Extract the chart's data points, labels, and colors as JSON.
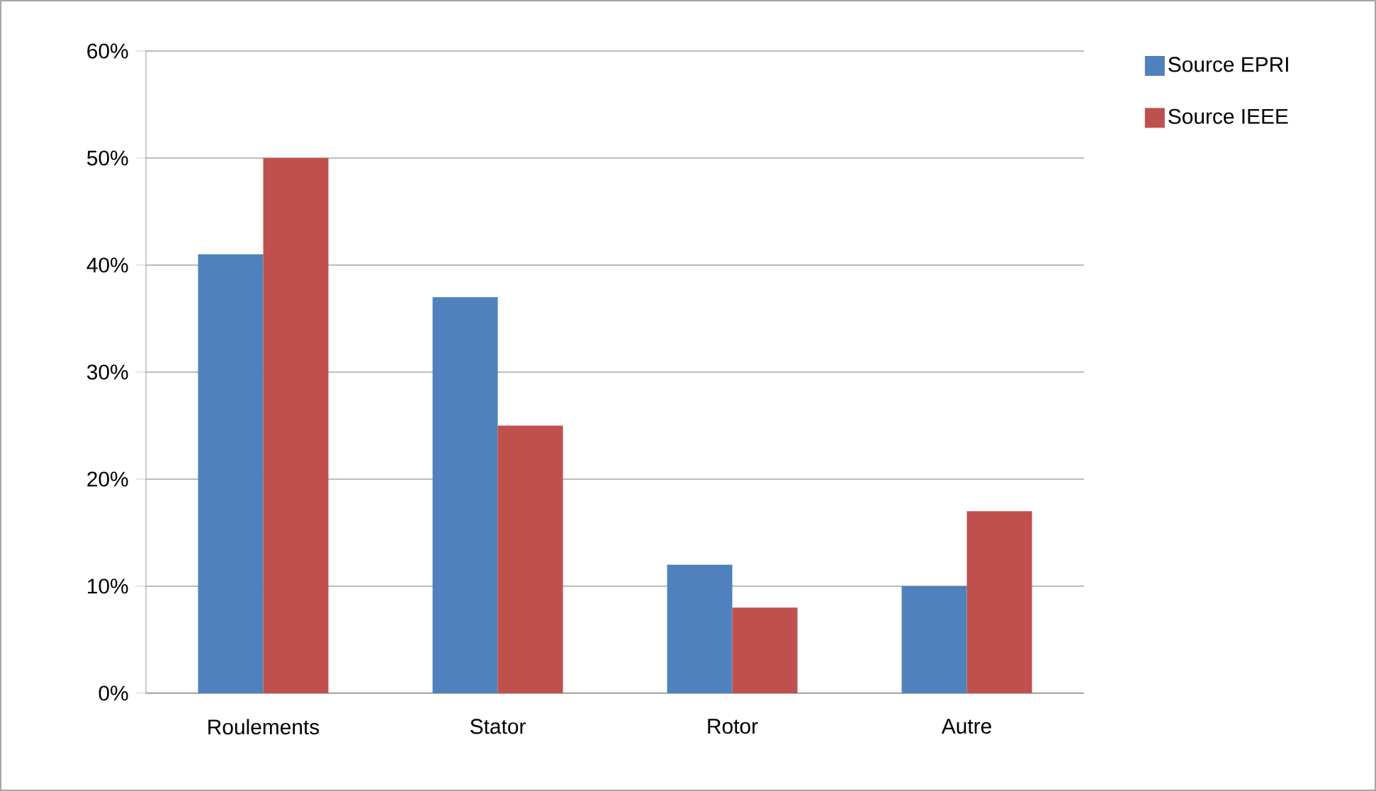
{
  "chart_data": {
    "type": "bar",
    "categories": [
      "Roulements",
      "Stator",
      "Rotor",
      "Autre"
    ],
    "series": [
      {
        "name": "Source EPRI",
        "color": "#4f81bd",
        "values": [
          41,
          37,
          12,
          10
        ]
      },
      {
        "name": "Source IEEE",
        "color": "#c0504d",
        "values": [
          50,
          25,
          8,
          17
        ]
      }
    ],
    "ylim": [
      0,
      60
    ],
    "yticks": [
      {
        "value": 0,
        "label": "0%"
      },
      {
        "value": 10,
        "label": "10%"
      },
      {
        "value": 20,
        "label": "20%"
      },
      {
        "value": 30,
        "label": "30%"
      },
      {
        "value": 40,
        "label": "40%"
      },
      {
        "value": 50,
        "label": "50%"
      },
      {
        "value": 60,
        "label": "60%"
      }
    ],
    "grid": "y",
    "legend": "top right"
  }
}
